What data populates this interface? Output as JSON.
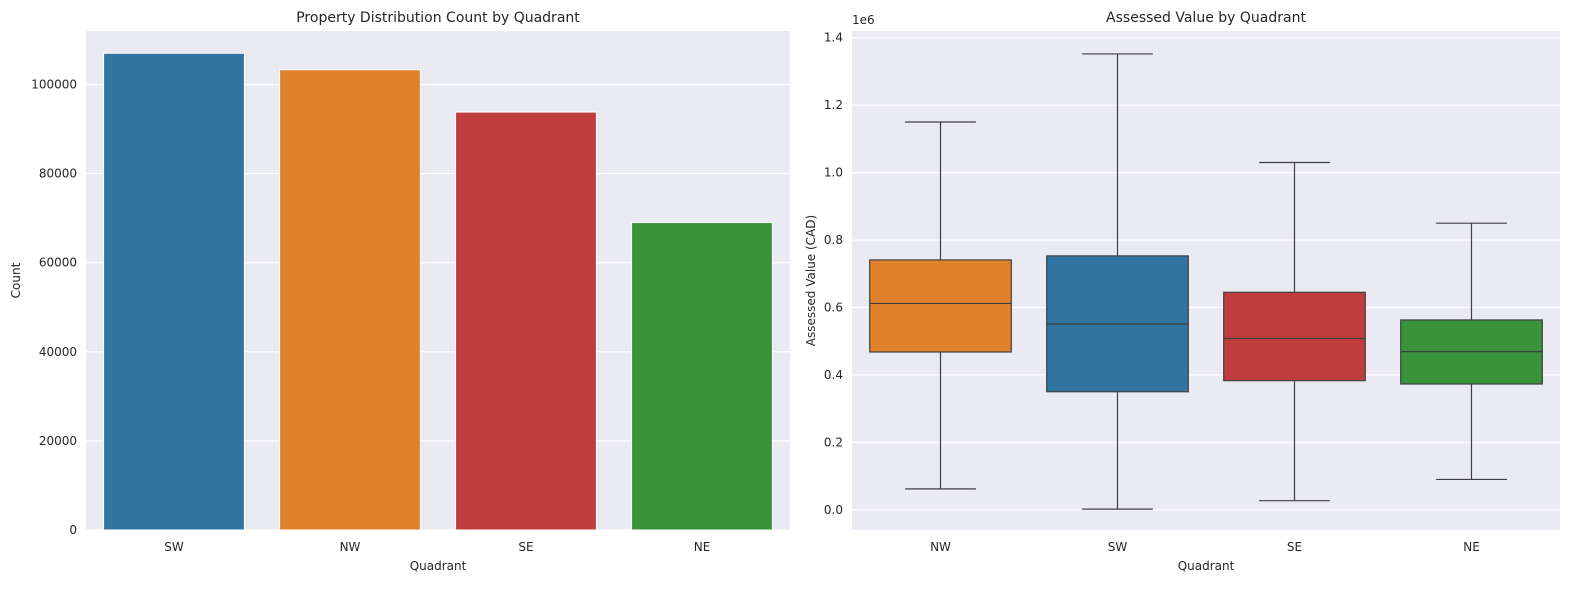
{
  "colors": {
    "background": "#eaeaf2",
    "grid": "#ffffff",
    "text": "#262626",
    "boxline": "#3f3f3f",
    "SW": "#3274a1",
    "NW": "#e1812c",
    "SE": "#c03d3e",
    "NE": "#3a923a"
  },
  "chart_data": [
    {
      "type": "bar",
      "title": "Property Distribution Count by Quadrant",
      "xlabel": "Quadrant",
      "ylabel": "Count",
      "categories": [
        "SW",
        "NW",
        "SE",
        "NE"
      ],
      "values": [
        107000,
        103300,
        93800,
        69000
      ],
      "ylim": [
        0,
        112000
      ],
      "yticks": [
        0,
        20000,
        40000,
        60000,
        80000,
        100000
      ],
      "ytick_labels": [
        "0",
        "20000",
        "40000",
        "60000",
        "80000",
        "100000"
      ],
      "grid": true
    },
    {
      "type": "box",
      "title": "Assessed Value by Quadrant",
      "xlabel": "Quadrant",
      "ylabel": "Assessed Value (CAD)",
      "offset_label": "1e6",
      "categories": [
        "NW",
        "SW",
        "SE",
        "NE"
      ],
      "boxes": [
        {
          "whisker_low": 0.062,
          "q1": 0.468,
          "median": 0.612,
          "q3": 0.741,
          "whisker_high": 1.15
        },
        {
          "whisker_low": 0.002,
          "q1": 0.35,
          "median": 0.551,
          "q3": 0.753,
          "whisker_high": 1.352
        },
        {
          "whisker_low": 0.027,
          "q1": 0.383,
          "median": 0.508,
          "q3": 0.645,
          "whisker_high": 1.03
        },
        {
          "whisker_low": 0.09,
          "q1": 0.373,
          "median": 0.469,
          "q3": 0.563,
          "whisker_high": 0.85
        }
      ],
      "ylim": [
        -0.06,
        1.42
      ],
      "yticks": [
        0.0,
        0.2,
        0.4,
        0.6,
        0.8,
        1.0,
        1.2,
        1.4
      ],
      "ytick_labels": [
        "0.0",
        "0.2",
        "0.4",
        "0.6",
        "0.8",
        "1.0",
        "1.2",
        "1.4"
      ],
      "grid": true
    }
  ]
}
